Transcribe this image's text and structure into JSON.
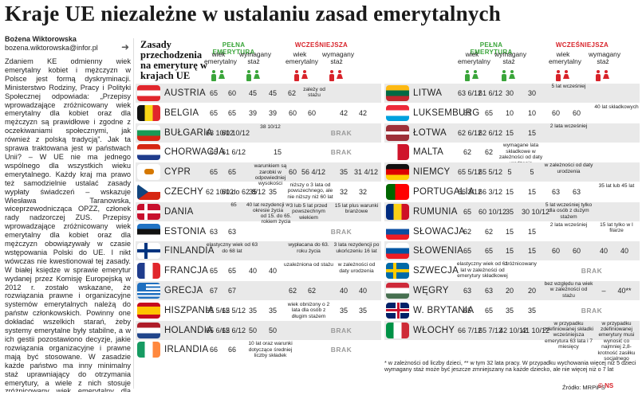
{
  "title": "Kraje UE niezależne w ustalaniu zasad emerytalnych",
  "author": "Bożena Wiktorowska",
  "email": "bozena.wiktorowska@infor.pl",
  "article": "Zdaniem KE odmienny wiek emerytalny kobiet i mężczyzn w Polsce jest formą dyskryminacji. Ministerstwo Rodziny, Pracy i Polityki Społecznej odpowiada: „Przepisy wprowadzające zróżnicowany wiek emerytalny dla kobiet oraz dla mężczyzn są prawidłowe i zgodne z oczekiwaniami społecznymi, jak również z polską tradycją”. Jak ta sprawa traktowana jest w państwach Unii? – W UE nie ma jednego wspólnego dla wszystkich wieku emerytalnego. Każdy kraj ma prawo też samodzielnie ustalać zasady wypłaty świadczeń – wskazuje Wiesława Taranowska, wiceprzewodnicząca OPZZ, członek rady nadzorczej ZUS. Przepisy wprowadzające zróżnicowany wiek emerytalny dla kobiet oraz dla mężczyzn obowiązywały w czasie wstępowania Polski do UE. I nikt wówczas nie kwestionował tej zasady. W białej księdze w sprawie emerytur wydanej przez Komisję Europejską w 2012 r. zostało wskazane, że rozwiązania prawne i organizacyjne systemów emerytalnych należą do państw członkowskich. Powinny one dokładać wszelkich starań, żeby systemy emerytalne były stabilne, a w ich gestii pozostawiono decyzje, jakie rozwiązania organizacyjne i prawne mają być stosowane. W zasadzie każde państwo ma inny minimalny staż uprawniający do otrzymania emerytury, a wiele z nich stosuje zróżnicowany wiek emerytalny dla kobiet i mężczyzn.",
  "header": {
    "title": "Zasady przechodzenia na emeryturę w krajach UE",
    "full": "PEŁNA EMERYTURA",
    "early": "WCZEŚNIEJSZA",
    "age": "wiek emerytalny",
    "tenure": "wymagany staż",
    "brak": "BRAK"
  },
  "left_rows": [
    {
      "country": "AUSTRIA",
      "flag": "austria",
      "f": [
        "65",
        "60",
        "45",
        "45"
      ],
      "e": [
        "62",
        "zależy od stażu",
        "",
        ""
      ],
      "kind": "mixed"
    },
    {
      "country": "BELGIA",
      "flag": "belgium",
      "f": [
        "65",
        "65",
        "39",
        "39"
      ],
      "e": [
        "60",
        "60",
        "42",
        "42"
      ],
      "kind": "values"
    },
    {
      "country": "BUŁGARIA",
      "flag": "bulgaria",
      "f": [
        "63 10/12",
        "60 10/12",
        "38 10/12",
        "35 10/12"
      ],
      "e": [],
      "kind": "brak"
    },
    {
      "country": "CHORWACJA",
      "flag": "croatia",
      "f": [
        "65",
        "61 6/12",
        "",
        ""
      ],
      "e": [],
      "kind": "brak",
      "fnote": "15"
    },
    {
      "country": "CYPR",
      "flag": "cyprus",
      "f": [
        "65",
        "65",
        "warunkiem są zarobki w odpowiedniej wysokości",
        ""
      ],
      "e": [
        "60",
        "56 4/12",
        "35",
        "31 4/12"
      ],
      "kind": "values"
    },
    {
      "country": "CZECHY",
      "flag": "czech",
      "f": [
        "62 10/12",
        "60 do 62 8/12",
        "35",
        "35"
      ],
      "e": [
        "",
        "",
        "",
        ""
      ],
      "kind": "czech"
    },
    {
      "country": "DANIA",
      "flag": "denmark",
      "f": [
        "65",
        "65",
        "40 lat rezydencji w okresie życia",
        "od 15. do 65. rokiem życia"
      ],
      "e": [
        "3 lub 5 lat przed powszechnym wiekiem",
        "",
        "15 lat plus warunki branżowe",
        ""
      ],
      "kind": "dania"
    },
    {
      "country": "ESTONIA",
      "flag": "estonia",
      "f": [
        "63",
        "63",
        "",
        ""
      ],
      "e": [],
      "kind": "estonia"
    },
    {
      "country": "FINLANDIA",
      "flag": "finland",
      "f": [
        "elastyczny wiek od 63 do 68 lat",
        "",
        "",
        ""
      ],
      "e": [
        "wypłacana do 63. roku życia",
        "",
        "3 lata rezydencji po ukończeniu 16 lat",
        ""
      ],
      "kind": "finland"
    },
    {
      "country": "FRANCJA",
      "flag": "france",
      "f": [
        "65",
        "65",
        "40",
        "40"
      ],
      "e": [
        "uzależniona od stażu",
        "",
        "w zależności od daty urodzenia",
        ""
      ],
      "kind": "france"
    },
    {
      "country": "GRECJA",
      "flag": "greece",
      "f": [
        "67",
        "67",
        "",
        ""
      ],
      "e": [
        "62",
        "62",
        "40",
        "40"
      ],
      "kind": "greece"
    },
    {
      "country": "HISZPANIA",
      "flag": "spain",
      "f": [
        "65 5/12",
        "65 5/12",
        "35",
        "35"
      ],
      "e": [
        "wiek obniżony o 2 lata dla osób z długim stażem",
        "",
        "35",
        "35"
      ],
      "kind": "spain"
    },
    {
      "country": "HOLANDIA",
      "flag": "netherlands",
      "f": [
        "65 6/12",
        "65 6/12",
        "50",
        "50"
      ],
      "e": [],
      "kind": "brak"
    },
    {
      "country": "IRLANDIA",
      "flag": "ireland",
      "f": [
        "66",
        "66",
        "10 lat oraz warunki dotyczące średniej liczby składek",
        ""
      ],
      "e": [],
      "kind": "brak"
    }
  ],
  "right_rows": [
    {
      "country": "LITWA",
      "flag": "lithuania",
      "f": [
        "63 6/12",
        "61 6/12",
        "30",
        "30"
      ],
      "e": [
        "5 lat wcześniej",
        ""
      ],
      "kind": "r"
    },
    {
      "country": "LUKSEMBURG",
      "flag": "luxembourg",
      "f": [
        "65",
        "65",
        "10",
        "10"
      ],
      "e": [
        "60",
        "60",
        "40 lat składkowych",
        ""
      ],
      "kind": "r"
    },
    {
      "country": "ŁOTWA",
      "flag": "latvia",
      "f": [
        "62 6/12",
        "62 6/12",
        "15",
        "15"
      ],
      "e": [
        "2 lata wcześniej",
        "",
        "",
        ""
      ],
      "kind": "r"
    },
    {
      "country": "MALTA",
      "flag": "malta",
      "f": [
        "62",
        "62",
        "wymagane lata składkowe w zależności od daty urodzenia",
        ""
      ],
      "e": [
        "",
        "",
        "",
        ""
      ],
      "kind": "r"
    },
    {
      "country": "NIEMCY",
      "flag": "germany",
      "f": [
        "65 5/12",
        "65 5/12",
        "5",
        "5"
      ],
      "e": [
        "w zależności od daty urodzenia",
        "",
        "",
        ""
      ],
      "kind": "r"
    },
    {
      "country": "PORTUGALIA",
      "flag": "portugal",
      "f": [
        "66 3/12",
        "66 3/12",
        "15",
        "15"
      ],
      "e": [
        "63",
        "63",
        "35 lat lub 45 lat",
        ""
      ],
      "kind": "r"
    },
    {
      "country": "RUMUNIA",
      "flag": "romania",
      "f": [
        "65",
        "60 10/12",
        "35",
        "30 10/12"
      ],
      "e": [
        "5 lat wcześniej tylko dla osób z dużym stażem",
        "",
        "",
        ""
      ],
      "kind": "r"
    },
    {
      "country": "SŁOWACJA",
      "flag": "slovakia",
      "f": [
        "62",
        "62",
        "15",
        "15"
      ],
      "e": [
        "2 lata wcześniej",
        "",
        "15 lat tylko w I filarze",
        ""
      ],
      "kind": "r"
    },
    {
      "country": "SŁOWENIA",
      "flag": "slovenia",
      "f": [
        "65",
        "65",
        "15",
        "15"
      ],
      "e": [
        "60",
        "60",
        "40",
        "40"
      ],
      "kind": "r"
    },
    {
      "country": "SZWECJA",
      "flag": "sweden",
      "f": [
        "elastyczny wiek od 61 lat w zależności od emerytury składkowej",
        "",
        "zróżnicowany",
        ""
      ],
      "e": [],
      "kind": "rbrak"
    },
    {
      "country": "WĘGRY",
      "flag": "hungary",
      "f": [
        "63",
        "63",
        "20",
        "20"
      ],
      "e": [
        "bez względu na wiek w zależności od stażu",
        "",
        "–",
        "40**"
      ],
      "kind": "r"
    },
    {
      "country": "W. BRYTANIA",
      "flag": "uk",
      "f": [
        "65",
        "65",
        "35",
        "35"
      ],
      "e": [],
      "kind": "rbrak"
    },
    {
      "country": "WŁOCHY",
      "flag": "italy",
      "f": [
        "66 7/12",
        "65 7/12",
        "42 10/12",
        "41 10/12"
      ],
      "e": [
        "w przypadku zdefiniowanej składki wcześniejsza emerytura 63 lata i 7 miesięcy",
        "",
        "w przypadku zdefiniowanej emerytury musi wynosić co najmniej 2,8-krotność zasiłku socjalnego",
        ""
      ],
      "kind": "r"
    }
  ],
  "footnote": "* w zależności od liczby dzieci, ** w tym 32 lata pracy. W przypadku wychowania więcej niż 5 dzieci wymagany staż może być jeszcze zmniejszany na każde dziecko, ale nie więcej niż o 7 lat",
  "source": "Źródło: MRPiPS",
  "credit": "© NS",
  "colors": {
    "green": "#3aa53a",
    "red": "#d8232a",
    "shade": "#e9e9e9"
  }
}
